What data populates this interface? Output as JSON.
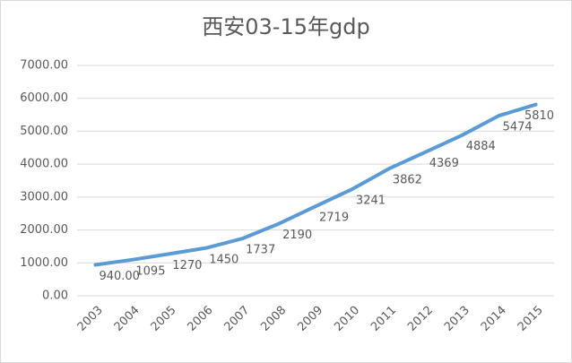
{
  "chart_data": {
    "type": "line",
    "title": "西安03-15年gdp",
    "categories": [
      "2003",
      "2004",
      "2005",
      "2006",
      "2007",
      "2008",
      "2009",
      "2010",
      "2011",
      "2012",
      "2013",
      "2014",
      "2015"
    ],
    "values": [
      940,
      1095,
      1270,
      1450,
      1737,
      2190,
      2719,
      3241,
      3862,
      4369,
      4884,
      5474,
      5810
    ],
    "value_labels": [
      "940.00",
      "1095",
      "1270",
      "1450",
      "1737",
      "2190",
      "2719",
      "3241",
      "3862",
      "4369",
      "4884",
      "5474",
      "5810"
    ],
    "color": "#5b9bd5",
    "ylim": [
      0,
      7000
    ],
    "yticks": [
      {
        "value": 0,
        "label": "0.00"
      },
      {
        "value": 1000,
        "label": "1000.00"
      },
      {
        "value": 2000,
        "label": "2000.00"
      },
      {
        "value": 3000,
        "label": "3000.00"
      },
      {
        "value": 4000,
        "label": "4000.00"
      },
      {
        "value": 5000,
        "label": "5000.00"
      },
      {
        "value": 6000,
        "label": "6000.00"
      },
      {
        "value": 7000,
        "label": "7000.00"
      }
    ],
    "grid": true
  }
}
